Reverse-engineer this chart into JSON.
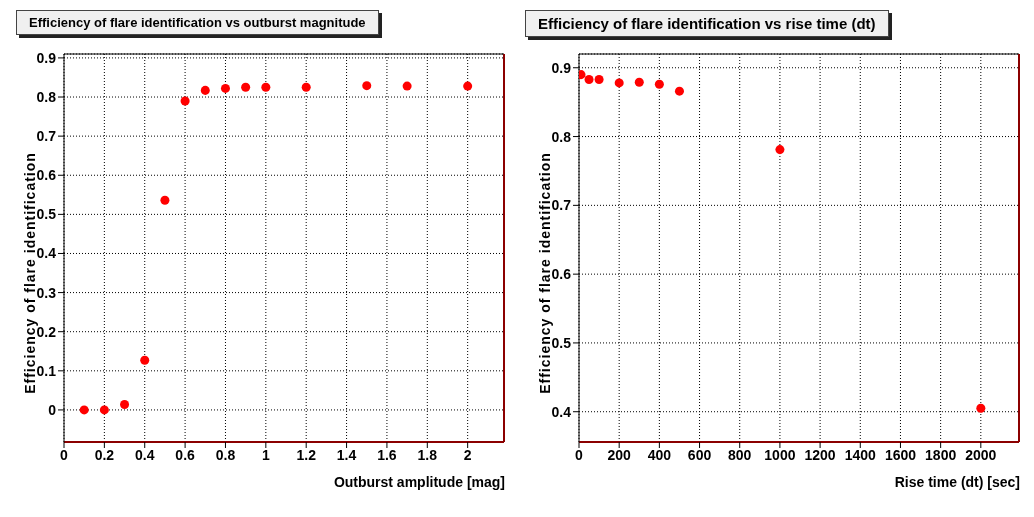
{
  "chart_data": [
    {
      "type": "scatter",
      "title": "Efficiency of flare identification vs outburst magnitude",
      "xlabel": "Outburst amplitude [mag]",
      "ylabel": "Efficiency of flare identification",
      "x": [
        0.1,
        0.2,
        0.3,
        0.4,
        0.5,
        0.6,
        0.7,
        0.8,
        0.9,
        1,
        1.2,
        1.5,
        1.7,
        2
      ],
      "series": [
        {
          "color": "#ff0000",
          "values": [
            0.0,
            0.0,
            0.014,
            0.127,
            0.536,
            0.79,
            0.817,
            0.822,
            0.825,
            0.825,
            0.825,
            0.829,
            0.828,
            0.828
          ]
        }
      ],
      "xlim": [
        0,
        2.18
      ],
      "xticks": [
        0,
        0.2,
        0.4,
        0.6,
        0.8,
        1,
        1.2,
        1.4,
        1.6,
        1.8,
        2
      ],
      "ylim": [
        -0.082,
        0.91
      ],
      "yticks": [
        0,
        0.1,
        0.2,
        0.3,
        0.4,
        0.5,
        0.6,
        0.7,
        0.8,
        0.9
      ],
      "grid": true,
      "legend": false,
      "marker": "circle"
    },
    {
      "type": "scatter",
      "title": "Efficiency of flare identification vs rise time (dt)",
      "xlabel": "Rise time (dt) [sec]",
      "ylabel": "Efficiency of flare identification",
      "x": [
        10,
        50,
        100,
        200,
        300,
        400,
        500,
        1000,
        2000
      ],
      "series": [
        {
          "color": "#ff0000",
          "values": [
            0.89,
            0.883,
            0.883,
            0.878,
            0.879,
            0.876,
            0.866,
            0.781,
            0.405
          ]
        }
      ],
      "xlim": [
        0,
        2190
      ],
      "xticks": [
        0,
        200,
        400,
        600,
        800,
        1000,
        1200,
        1400,
        1600,
        1800,
        2000
      ],
      "ylim": [
        0.356,
        0.92
      ],
      "yticks": [
        0.4,
        0.5,
        0.6,
        0.7,
        0.8,
        0.9
      ],
      "grid": true,
      "legend": false,
      "marker": "circle"
    }
  ]
}
